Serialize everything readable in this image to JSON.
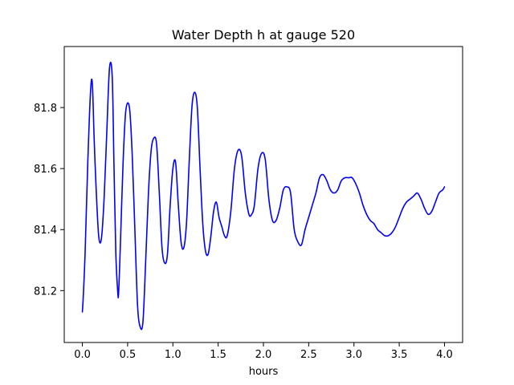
{
  "chart_data": {
    "type": "line",
    "title": "Water Depth h at gauge 520",
    "xlabel": "hours",
    "ylabel": "",
    "xlim": [
      -0.2,
      4.2
    ],
    "ylim": [
      81.03,
      82.0
    ],
    "xticks": [
      0.0,
      0.5,
      1.0,
      1.5,
      2.0,
      2.5,
      3.0,
      3.5,
      4.0
    ],
    "xtick_labels": [
      "0.0",
      "0.5",
      "1.0",
      "1.5",
      "2.0",
      "2.5",
      "3.0",
      "3.5",
      "4.0"
    ],
    "yticks": [
      81.2,
      81.4,
      81.6,
      81.8
    ],
    "ytick_labels": [
      "81.2",
      "81.4",
      "81.6",
      "81.8"
    ],
    "grid": false,
    "series": [
      {
        "color": "#0000ff",
        "x": [
          0.0,
          0.01,
          0.03,
          0.06,
          0.09,
          0.11,
          0.13,
          0.15,
          0.18,
          0.21,
          0.24,
          0.27,
          0.3,
          0.33,
          0.35,
          0.37,
          0.39,
          0.4,
          0.42,
          0.45,
          0.48,
          0.52,
          0.55,
          0.58,
          0.61,
          0.64,
          0.67,
          0.7,
          0.73,
          0.76,
          0.79,
          0.82,
          0.85,
          0.88,
          0.91,
          0.94,
          0.97,
          1.0,
          1.03,
          1.06,
          1.09,
          1.12,
          1.15,
          1.18,
          1.21,
          1.24,
          1.27,
          1.3,
          1.33,
          1.36,
          1.39,
          1.42,
          1.45,
          1.48,
          1.51,
          1.54,
          1.57,
          1.6,
          1.64,
          1.68,
          1.72,
          1.76,
          1.8,
          1.84,
          1.87,
          1.9,
          1.94,
          1.98,
          2.02,
          2.06,
          2.1,
          2.14,
          2.18,
          2.22,
          2.26,
          2.3,
          2.34,
          2.38,
          2.42,
          2.46,
          2.5,
          2.54,
          2.58,
          2.62,
          2.66,
          2.7,
          2.74,
          2.78,
          2.82,
          2.86,
          2.9,
          2.94,
          2.98,
          3.02,
          3.06,
          3.1,
          3.14,
          3.18,
          3.22,
          3.26,
          3.3,
          3.34,
          3.38,
          3.42,
          3.46,
          3.5,
          3.54,
          3.58,
          3.62,
          3.66,
          3.7,
          3.74,
          3.78,
          3.82,
          3.86,
          3.9,
          3.94,
          3.98,
          4.0
        ],
        "values": [
          81.13,
          81.18,
          81.32,
          81.62,
          81.85,
          81.88,
          81.7,
          81.55,
          81.38,
          81.37,
          81.5,
          81.72,
          81.93,
          81.9,
          81.6,
          81.32,
          81.2,
          81.19,
          81.35,
          81.62,
          81.79,
          81.8,
          81.65,
          81.4,
          81.15,
          81.08,
          81.1,
          81.3,
          81.52,
          81.66,
          81.7,
          81.68,
          81.52,
          81.34,
          81.29,
          81.32,
          81.48,
          81.6,
          81.62,
          81.48,
          81.36,
          81.34,
          81.42,
          81.62,
          81.8,
          81.85,
          81.8,
          81.6,
          81.42,
          81.33,
          81.32,
          81.38,
          81.46,
          81.49,
          81.44,
          81.41,
          81.38,
          81.38,
          81.46,
          81.6,
          81.66,
          81.64,
          81.52,
          81.45,
          81.45,
          81.48,
          81.6,
          81.65,
          81.63,
          81.5,
          81.43,
          81.43,
          81.47,
          81.53,
          81.54,
          81.52,
          81.4,
          81.36,
          81.35,
          81.4,
          81.44,
          81.48,
          81.52,
          81.57,
          81.58,
          81.56,
          81.53,
          81.52,
          81.53,
          81.56,
          81.57,
          81.57,
          81.57,
          81.55,
          81.52,
          81.48,
          81.45,
          81.43,
          81.42,
          81.4,
          81.39,
          81.38,
          81.38,
          81.39,
          81.41,
          81.44,
          81.47,
          81.49,
          81.5,
          81.51,
          81.52,
          81.5,
          81.47,
          81.45,
          81.46,
          81.49,
          81.52,
          81.53,
          81.54
        ]
      }
    ]
  }
}
